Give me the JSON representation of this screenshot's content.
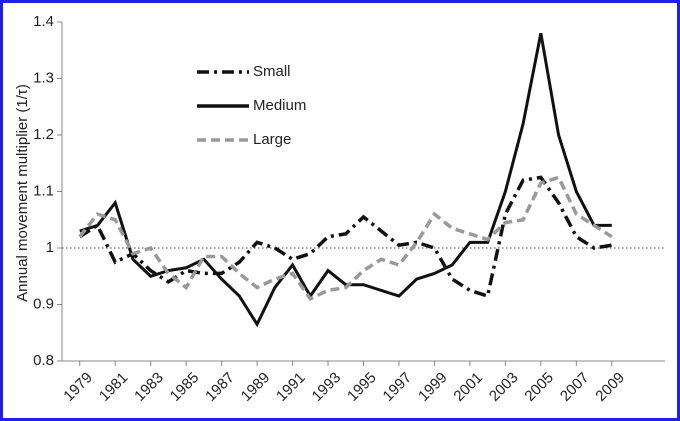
{
  "chart_data": {
    "type": "line",
    "y_label": "Annual movement multiplier (1/τ)",
    "x": [
      1979,
      1980,
      1981,
      1982,
      1983,
      1984,
      1985,
      1986,
      1987,
      1988,
      1989,
      1990,
      1991,
      1992,
      1993,
      1994,
      1995,
      1996,
      1997,
      1998,
      1999,
      2000,
      2001,
      2002,
      2003,
      2004,
      2005,
      2006,
      2007,
      2008,
      2009
    ],
    "series": [
      {
        "name": "Small",
        "color": "#111111",
        "style": "dashdot",
        "values": [
          1.02,
          1.04,
          0.975,
          0.99,
          0.96,
          0.94,
          0.96,
          0.955,
          0.955,
          0.975,
          1.01,
          1.0,
          0.98,
          0.99,
          1.02,
          1.025,
          1.055,
          1.03,
          1.005,
          1.01,
          1.0,
          0.945,
          0.925,
          0.915,
          1.06,
          1.12,
          1.125,
          1.08,
          1.02,
          1.0,
          1.005
        ]
      },
      {
        "name": "Medium",
        "color": "#111111",
        "style": "solid",
        "values": [
          1.03,
          1.04,
          1.08,
          0.98,
          0.95,
          0.96,
          0.965,
          0.98,
          0.945,
          0.915,
          0.865,
          0.93,
          0.97,
          0.915,
          0.96,
          0.935,
          0.935,
          0.925,
          0.915,
          0.945,
          0.955,
          0.97,
          1.01,
          1.01,
          1.1,
          1.22,
          1.38,
          1.2,
          1.1,
          1.04,
          1.04
        ]
      },
      {
        "name": "Large",
        "color": "#999999",
        "style": "dashed",
        "values": [
          1.02,
          1.06,
          1.05,
          0.99,
          1.0,
          0.955,
          0.93,
          0.985,
          0.985,
          0.955,
          0.93,
          0.945,
          0.955,
          0.91,
          0.925,
          0.93,
          0.96,
          0.98,
          0.97,
          1.01,
          1.06,
          1.035,
          1.025,
          1.015,
          1.045,
          1.05,
          1.115,
          1.125,
          1.06,
          1.04,
          1.02
        ]
      }
    ],
    "xlim": [
      1978,
      2012
    ],
    "xticks": [
      1979,
      1981,
      1983,
      1985,
      1987,
      1989,
      1991,
      1993,
      1995,
      1997,
      1999,
      2001,
      2003,
      2005,
      2007,
      2009
    ],
    "ylim": [
      0.8,
      1.4
    ],
    "yticks": [
      0.8,
      0.9,
      1,
      1.1,
      1.2,
      1.3,
      1.4
    ],
    "reference_line": 1,
    "legend": "upper left"
  }
}
